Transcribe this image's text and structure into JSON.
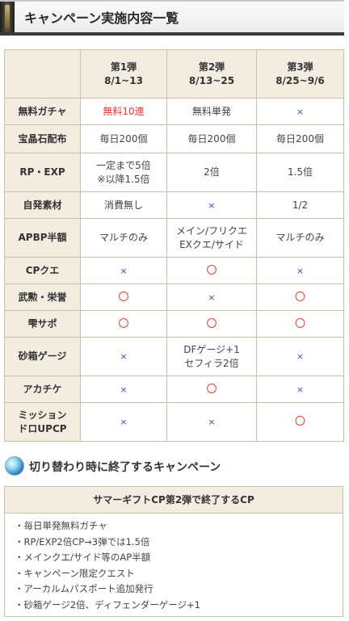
{
  "header": {
    "title": "キャンペーン実施内容一覧"
  },
  "table": {
    "columns": [
      {
        "name": "第1弾",
        "dates": "8/1~13"
      },
      {
        "name": "第2弾",
        "dates": "8/13~25"
      },
      {
        "name": "第3弾",
        "dates": "8/25~9/6"
      }
    ],
    "rows": [
      {
        "label": "無料ガチャ",
        "cells": [
          {
            "text": "無料10連",
            "style": "red"
          },
          {
            "text": "無料単発",
            "style": "normal"
          },
          {
            "text": "×",
            "style": "cross"
          }
        ]
      },
      {
        "label": "宝晶石配布",
        "cells": [
          {
            "text": "毎日200個",
            "style": "normal"
          },
          {
            "text": "毎日200個",
            "style": "normal"
          },
          {
            "text": "毎日200個",
            "style": "normal"
          }
        ]
      },
      {
        "label": "RP・EXP",
        "cells": [
          {
            "text": "一定まで5倍",
            "text2": "※以降1.5倍",
            "style": "normal"
          },
          {
            "text": "2倍",
            "style": "normal"
          },
          {
            "text": "1.5倍",
            "style": "normal"
          }
        ]
      },
      {
        "label": "自発素材",
        "cells": [
          {
            "text": "消費無し",
            "style": "normal"
          },
          {
            "text": "×",
            "style": "cross"
          },
          {
            "text": "1/2",
            "style": "normal"
          }
        ]
      },
      {
        "label": "APBP半額",
        "cells": [
          {
            "text": "マルチのみ",
            "style": "normal"
          },
          {
            "text": "メイン/フリクエ",
            "text2": "EXクエ/サイド",
            "style": "normal"
          },
          {
            "text": "マルチのみ",
            "style": "normal"
          }
        ]
      },
      {
        "label": "CPクエ",
        "cells": [
          {
            "text": "×",
            "style": "cross"
          },
          {
            "text": "〇",
            "style": "circle"
          },
          {
            "text": "×",
            "style": "cross"
          }
        ]
      },
      {
        "label": "武勲・栄誉",
        "cells": [
          {
            "text": "〇",
            "style": "circle"
          },
          {
            "text": "×",
            "style": "cross"
          },
          {
            "text": "〇",
            "style": "circle"
          }
        ]
      },
      {
        "label": "雫サポ",
        "cells": [
          {
            "text": "〇",
            "style": "circle"
          },
          {
            "text": "〇",
            "style": "circle"
          },
          {
            "text": "〇",
            "style": "circle"
          }
        ]
      },
      {
        "label": "砂箱ゲージ",
        "cells": [
          {
            "text": "×",
            "style": "cross"
          },
          {
            "text": "DFゲージ+1",
            "text2": "セフィラ2倍",
            "style": "normal"
          },
          {
            "text": "×",
            "style": "cross"
          }
        ]
      },
      {
        "label": "アカチケ",
        "cells": [
          {
            "text": "×",
            "style": "cross"
          },
          {
            "text": "〇",
            "style": "circle"
          },
          {
            "text": "×",
            "style": "cross"
          }
        ]
      },
      {
        "label": "ミッション",
        "label2": "ドロUPCP",
        "cells": [
          {
            "text": "×",
            "style": "cross"
          },
          {
            "text": "×",
            "style": "cross"
          },
          {
            "text": "〇",
            "style": "circle"
          }
        ]
      }
    ]
  },
  "section2": {
    "title": "切り替わり時に終了するキャンペーン"
  },
  "gift": {
    "title": "サマーギフトCP第2弾で終了するCP",
    "items": [
      "毎日単発無料ガチャ",
      "RP/EXP2倍CP→3弾では1.5倍",
      "メインクエ/サイド等のAP半額",
      "キャンペーン限定クエスト",
      "アーカルムパスポート追加発行",
      "砂箱ゲージ2倍、ディフェンダーゲージ+1"
    ]
  }
}
